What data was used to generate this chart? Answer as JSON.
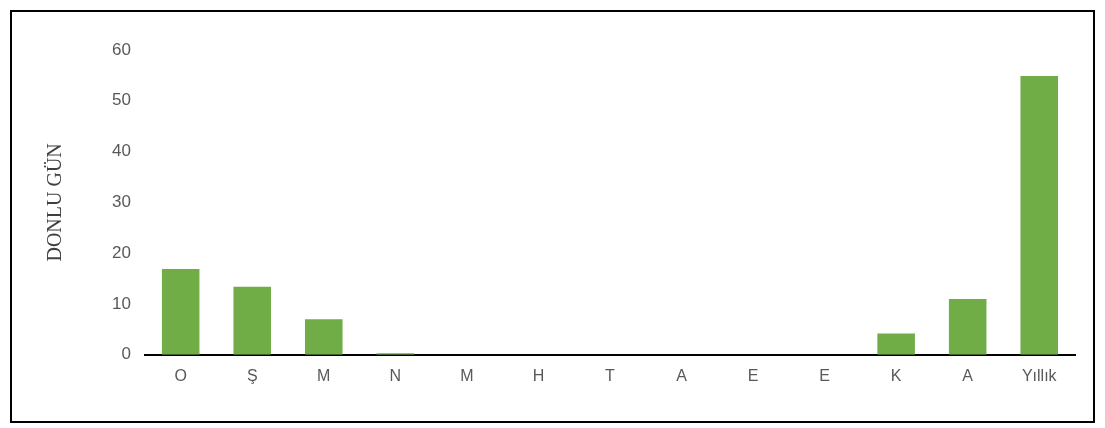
{
  "chart_data": {
    "type": "bar",
    "ylabel": "DONLU GÜN",
    "categories": [
      "O",
      "Ş",
      "M",
      "N",
      "M",
      "H",
      "T",
      "A",
      "E",
      "E",
      "K",
      "A",
      "Yıllık"
    ],
    "values": [
      16.9,
      13.4,
      7.0,
      0.3,
      0,
      0,
      0,
      0,
      0,
      0,
      4.2,
      11.0,
      54.9
    ],
    "color": "#70ad47",
    "ylim": [
      0,
      60
    ],
    "yticks": [
      0,
      10,
      20,
      30,
      40,
      50,
      60
    ],
    "grid": false,
    "legend": false
  }
}
